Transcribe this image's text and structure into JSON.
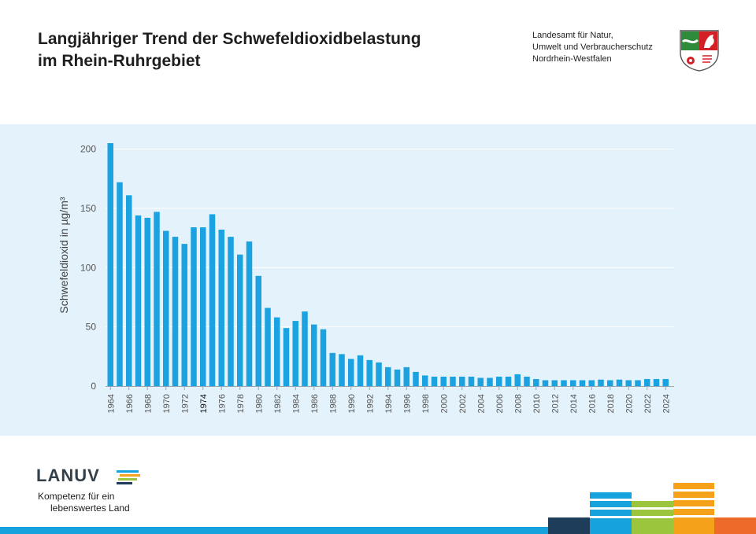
{
  "header": {
    "title_line1": "Langjähriger Trend der Schwefeldioxidbelastung",
    "title_line2": "im Rhein-Ruhrgebiet",
    "agency_line1": "Landesamt für Natur,",
    "agency_line2": "Umwelt und Verbraucherschutz",
    "agency_line3": "Nordrhein-Westfalen",
    "crest_icon": "nrw-coat-of-arms-icon"
  },
  "chart_data": {
    "type": "bar",
    "title": "",
    "xlabel": "",
    "ylabel": "Schwefeldioxid in µg/m³",
    "ylim": [
      0,
      205
    ],
    "yticks": [
      0,
      50,
      100,
      150,
      200
    ],
    "grid": true,
    "highlight_tick": "1974",
    "color": "#1aa3e0",
    "categories": [
      "1964",
      "1965",
      "1966",
      "1967",
      "1968",
      "1969",
      "1970",
      "1971",
      "1972",
      "1973",
      "1974",
      "1975",
      "1976",
      "1977",
      "1978",
      "1979",
      "1980",
      "1981",
      "1982",
      "1983",
      "1984",
      "1985",
      "1986",
      "1987",
      "1988",
      "1989",
      "1990",
      "1991",
      "1992",
      "1993",
      "1994",
      "1995",
      "1996",
      "1997",
      "1998",
      "1999",
      "2000",
      "2001",
      "2002",
      "2003",
      "2004",
      "2005",
      "2006",
      "2007",
      "2008",
      "2009",
      "2010",
      "2011",
      "2012",
      "2013",
      "2014",
      "2015",
      "2016",
      "2017",
      "2018",
      "2019",
      "2020",
      "2021",
      "2022",
      "2023",
      "2024"
    ],
    "values": [
      205,
      172,
      161,
      144,
      142,
      147,
      131,
      126,
      120,
      134,
      134,
      145,
      132,
      126,
      111,
      122,
      93,
      66,
      58,
      49,
      55,
      63,
      52,
      48,
      28,
      27,
      23,
      26,
      22,
      20,
      16,
      14,
      16,
      12,
      9,
      8,
      8,
      8,
      8,
      8,
      7,
      7,
      8,
      8,
      10,
      8,
      6,
      5,
      5,
      5,
      5,
      5,
      5,
      5.5,
      5,
      5.5,
      5,
      5,
      6,
      6,
      6
    ],
    "tick_labels": [
      "1964",
      "1966",
      "1968",
      "1970",
      "1972",
      "1974",
      "1976",
      "1978",
      "1980",
      "1982",
      "1984",
      "1986",
      "1988",
      "1990",
      "1992",
      "1994",
      "1996",
      "1998",
      "2000",
      "2002",
      "2004",
      "2006",
      "2008",
      "2010",
      "2012",
      "2014",
      "2016",
      "2018",
      "2020",
      "2022",
      "2024"
    ]
  },
  "footer": {
    "logo_text": "LANUV",
    "tagline_line1": "Kompetenz für ein",
    "tagline_line2": "lebenswertes Land",
    "colors": [
      "#1e3d5a",
      "#16a2dd",
      "#9bc53d",
      "#f6a11a",
      "#ee6a2a"
    ]
  }
}
